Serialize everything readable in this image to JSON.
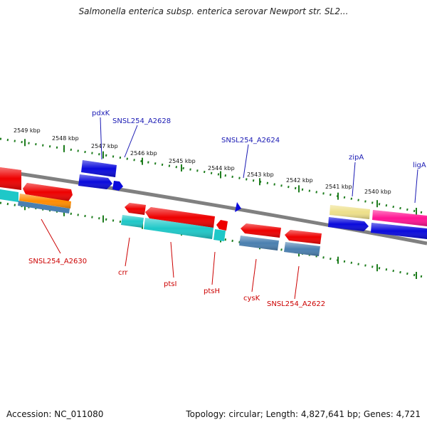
{
  "title": "Salmonella enterica subsp. enterica serovar Newport str. SL2...",
  "footer": {
    "accession": "Accession: NC_011080",
    "topology": "Topology: circular; Length: 4,827,641 bp; Genes: 4,721"
  },
  "colors": {
    "backbone": "#808080",
    "tick": "#1e7d1e",
    "gene_blue": "#0a0adc",
    "gene_red": "#ee0000",
    "gene_cyan": "#1ec8c8",
    "gene_steel": "#4a7fb0",
    "gene_orange": "#ff8c00",
    "gene_pink": "#ff1493",
    "gene_khaki": "#eee08a",
    "label_blue": "#1a1ab4",
    "label_red": "#cc0000"
  },
  "scale_labels": [
    "2549 kbp",
    "2548 kbp",
    "2547 kbp",
    "2546 kbp",
    "2545 kbp",
    "2544 kbp",
    "2543 kbp",
    "2542 kbp",
    "2541 kbp",
    "2540 kbp"
  ],
  "gene_labels": {
    "top": [
      "pdxK",
      "SNSL254_A2628",
      "SNSL254_A2624",
      "zipA",
      "ligA"
    ],
    "bottom": [
      "SNSL254_A2630",
      "crr",
      "ptsI",
      "ptsH",
      "cysK",
      "SNSL254_A2622"
    ]
  }
}
